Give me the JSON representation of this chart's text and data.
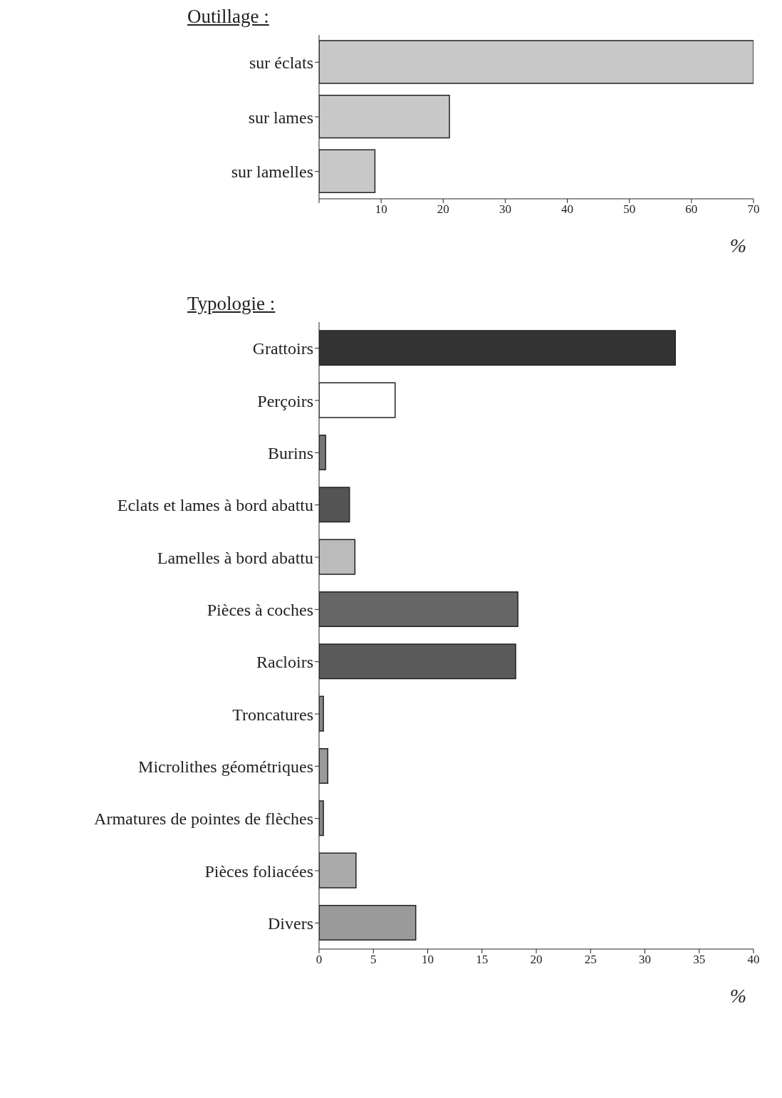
{
  "chart_data": [
    {
      "type": "bar",
      "orientation": "horizontal",
      "title": "Outillage :",
      "xlabel": "%",
      "categories": [
        "sur éclats",
        "sur lames",
        "sur lamelles"
      ],
      "values": [
        70,
        21,
        9
      ],
      "color": "#c8c8c8",
      "xlim": [
        0,
        70
      ],
      "xticks": [
        {
          "value": 0,
          "label": null
        },
        10,
        20,
        30,
        40,
        50,
        60,
        70
      ],
      "grid": false,
      "legend": false
    },
    {
      "type": "bar",
      "orientation": "horizontal",
      "title": "Typologie :",
      "xlabel": "%",
      "categories": [
        "Grattoirs",
        "Perçoirs",
        "Burins",
        "Eclats et lames à bord abattu",
        "Lamelles à bord abattu",
        "Pièces à coches",
        "Racloirs",
        "Troncatures",
        "Microlithes géométriques",
        "Armatures de pointes de flèches",
        "Pièces foliacées",
        "Divers"
      ],
      "values": [
        32.8,
        7,
        0.6,
        2.8,
        3.3,
        18.3,
        18.1,
        0.4,
        0.8,
        0.4,
        3.4,
        8.9
      ],
      "colors": [
        "#333333",
        "#ffffff",
        "#777777",
        "#555555",
        "#bbbbbb",
        "#666666",
        "#5a5a5a",
        "#888888",
        "#999999",
        "#888888",
        "#aaaaaa",
        "#9a9a9a"
      ],
      "xlim": [
        0,
        40
      ],
      "xticks": [
        0,
        5,
        10,
        15,
        20,
        25,
        30,
        35,
        40
      ],
      "grid": false,
      "legend": false
    }
  ]
}
